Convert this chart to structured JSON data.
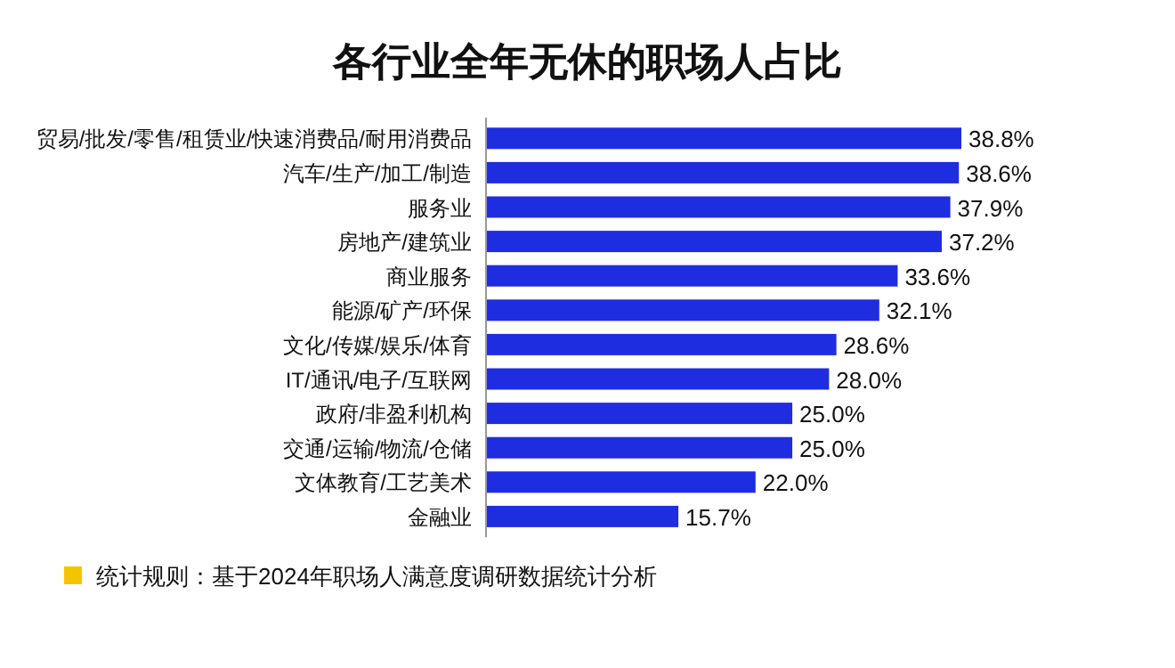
{
  "chart_data": {
    "type": "bar",
    "orientation": "horizontal",
    "title": "各行业全年无休的职场人占比",
    "categories": [
      "贸易/批发/零售/租赁业/快速消费品/耐用消费品",
      "汽车/生产/加工/制造",
      "服务业",
      "房地产/建筑业",
      "商业服务",
      "能源/矿产/环保",
      "文化/传媒/娱乐/体育",
      "IT/通讯/电子/互联网",
      "政府/非盈利机构",
      "交通/运输/物流/仓储",
      "文体教育/工艺美术",
      "金融业"
    ],
    "values": [
      38.8,
      38.6,
      37.9,
      37.2,
      33.6,
      32.1,
      28.6,
      28.0,
      25.0,
      25.0,
      22.0,
      15.7
    ],
    "value_labels": [
      "38.8%",
      "38.6%",
      "37.9%",
      "37.2%",
      "33.6%",
      "32.1%",
      "28.6%",
      "28.0%",
      "25.0%",
      "25.0%",
      "22.0%",
      "15.7%"
    ],
    "color": "#1f2de0",
    "annotations": [
      "统计规则：基于2024年职场人满意度调研数据统计分析"
    ]
  }
}
